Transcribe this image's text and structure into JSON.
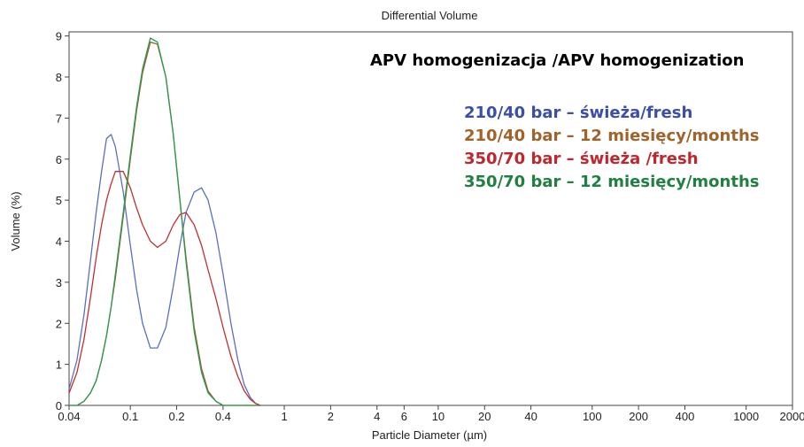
{
  "chart_data": {
    "type": "line",
    "title": "Differential Volume",
    "annotation": "APV homogenizacja /APV homogenization",
    "x_label": "Particle Diameter (µm)",
    "y_label": "Volume (%)",
    "log_x": true,
    "xlim": [
      0.04,
      2000
    ],
    "ylim": [
      0,
      9.1
    ],
    "xticks": [
      0.04,
      0.1,
      0.2,
      0.4,
      1,
      2,
      4,
      6,
      10,
      20,
      40,
      100,
      200,
      400,
      1000,
      2000
    ],
    "yticks": [
      0,
      1,
      2,
      3,
      4,
      5,
      6,
      7,
      8,
      9
    ],
    "x": [
      0.04,
      0.045,
      0.05,
      0.055,
      0.06,
      0.065,
      0.07,
      0.075,
      0.08,
      0.09,
      0.1,
      0.11,
      0.12,
      0.135,
      0.15,
      0.17,
      0.19,
      0.21,
      0.23,
      0.26,
      0.29,
      0.32,
      0.36,
      0.4,
      0.45,
      0.5,
      0.55,
      0.6,
      0.65,
      0.7
    ],
    "series": [
      {
        "name": "210/40 bar – świeża/fresh",
        "color": "#3b4ea8",
        "line_color": "#5a6fc0",
        "values": [
          0.4,
          1.1,
          2.2,
          3.5,
          4.7,
          5.7,
          6.5,
          6.6,
          6.3,
          5.2,
          3.9,
          2.8,
          2.0,
          1.4,
          1.4,
          1.9,
          2.9,
          3.9,
          4.7,
          5.2,
          5.3,
          5.0,
          4.2,
          3.2,
          2.0,
          1.1,
          0.5,
          0.2,
          0.05,
          0
        ]
      },
      {
        "name": "210/40 bar – 12 miesięcy/months",
        "color": "#a0632a",
        "line_color": "#a05a2c",
        "values": [
          0,
          0,
          0.1,
          0.3,
          0.6,
          1.1,
          1.7,
          2.4,
          3.1,
          4.6,
          6.0,
          7.2,
          8.1,
          8.85,
          8.8,
          8.0,
          6.6,
          5.0,
          3.6,
          1.9,
          0.9,
          0.35,
          0.1,
          0,
          0,
          0,
          0,
          0,
          0,
          0
        ]
      },
      {
        "name": "350/70 bar – świeża /fresh",
        "color": "#c0272d",
        "line_color": "#c03030",
        "values": [
          0.3,
          0.8,
          1.6,
          2.6,
          3.6,
          4.4,
          5.0,
          5.4,
          5.7,
          5.7,
          5.3,
          4.8,
          4.4,
          4.0,
          3.85,
          4.0,
          4.4,
          4.65,
          4.7,
          4.4,
          3.9,
          3.3,
          2.6,
          1.9,
          1.2,
          0.7,
          0.35,
          0.15,
          0.05,
          0
        ]
      },
      {
        "name": "350/70 bar – 12 miesięcy/months",
        "color": "#1f8040",
        "line_color": "#2a9a50",
        "values": [
          0,
          0,
          0.1,
          0.3,
          0.6,
          1.1,
          1.7,
          2.4,
          3.2,
          4.7,
          6.1,
          7.3,
          8.2,
          8.95,
          8.85,
          8.0,
          6.6,
          5.0,
          3.5,
          1.8,
          0.8,
          0.3,
          0.1,
          0,
          0,
          0,
          0,
          0,
          0,
          0
        ]
      }
    ]
  }
}
